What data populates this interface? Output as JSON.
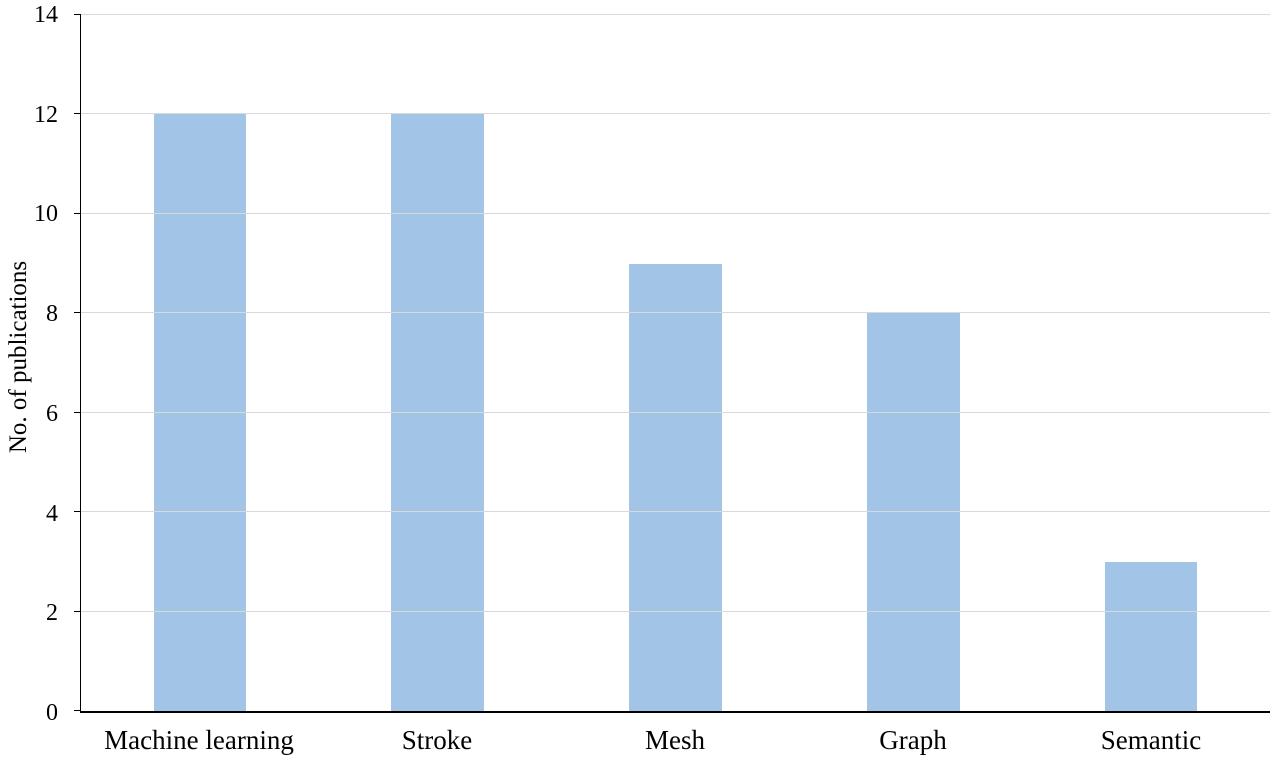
{
  "chart_data": {
    "type": "bar",
    "categories": [
      "Machine learning",
      "Stroke",
      "Mesh",
      "Graph",
      "Semantic"
    ],
    "values": [
      12,
      12,
      9,
      8,
      3
    ],
    "title": "",
    "xlabel": "",
    "ylabel": "No. of publications",
    "ylim": [
      0,
      14
    ],
    "ytick_step": 2,
    "ytick_labels": [
      "0",
      "2",
      "4",
      "6",
      "8",
      "10",
      "12",
      "14"
    ],
    "grid": true,
    "legend_position": "none",
    "colors": {
      "bar_fill": "#A2C4E6",
      "gridline": "#D9D9D9",
      "axis": "#000000",
      "background": "#FFFFFF",
      "text": "#000000"
    }
  }
}
